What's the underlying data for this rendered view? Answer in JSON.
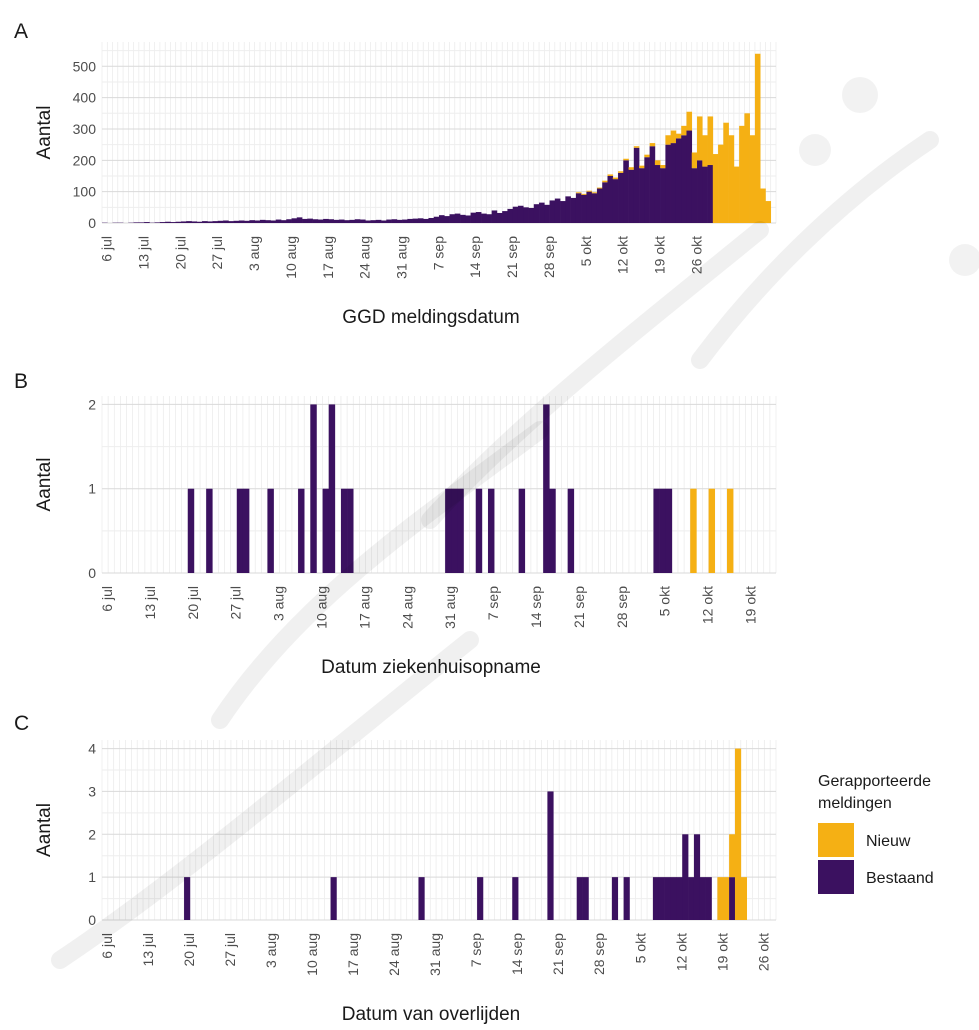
{
  "colors": {
    "nieuw": "#F5B014",
    "bestaand": "#3B1160",
    "grid": "#E6E6E6"
  },
  "legend": {
    "title_line1": "Gerapporteerde",
    "title_line2": "meldingen",
    "items": [
      {
        "key": "nieuw",
        "label": "Nieuw"
      },
      {
        "key": "bestaand",
        "label": "Bestaand"
      }
    ]
  },
  "chart_data": [
    {
      "panel": "A",
      "type": "bar",
      "stacked": true,
      "xlabel": "GGD meldingsdatum",
      "ylabel": "Aantal",
      "x_start": "6 jul",
      "ylim": [
        0,
        550
      ],
      "yticks": [
        0,
        100,
        200,
        300,
        400,
        500
      ],
      "xticks": [
        "6 jul",
        "13 jul",
        "20 jul",
        "27 jul",
        "3 aug",
        "10 aug",
        "17 aug",
        "24 aug",
        "31 aug",
        "7 sep",
        "14 sep",
        "21 sep",
        "28 sep",
        "5 okt",
        "12 okt",
        "19 okt",
        "26 okt"
      ],
      "series": [
        {
          "name": "Bestaand",
          "key": "bestaand",
          "values": [
            1,
            0,
            1,
            1,
            0,
            1,
            2,
            2,
            3,
            1,
            2,
            3,
            4,
            3,
            4,
            5,
            6,
            5,
            4,
            6,
            5,
            6,
            7,
            8,
            6,
            7,
            8,
            7,
            9,
            8,
            10,
            9,
            8,
            11,
            9,
            12,
            15,
            18,
            13,
            14,
            12,
            11,
            13,
            12,
            10,
            11,
            9,
            10,
            12,
            11,
            8,
            9,
            10,
            8,
            11,
            12,
            10,
            11,
            13,
            14,
            15,
            13,
            16,
            20,
            25,
            22,
            28,
            30,
            26,
            24,
            33,
            35,
            30,
            28,
            40,
            32,
            38,
            45,
            52,
            55,
            50,
            48,
            60,
            65,
            58,
            72,
            78,
            70,
            85,
            80,
            95,
            90,
            100,
            95,
            110,
            130,
            150,
            140,
            160,
            200,
            170,
            240,
            175,
            210,
            245,
            185,
            175,
            250,
            255,
            270,
            280,
            295,
            175,
            200,
            180,
            185,
            0,
            0,
            0,
            0,
            0,
            0,
            0,
            0,
            0,
            0,
            0,
            0
          ]
        },
        {
          "name": "Nieuw",
          "key": "nieuw",
          "values": [
            0,
            0,
            0,
            0,
            0,
            0,
            0,
            0,
            0,
            0,
            0,
            0,
            0,
            0,
            0,
            0,
            0,
            0,
            0,
            0,
            0,
            0,
            0,
            0,
            0,
            0,
            0,
            0,
            0,
            0,
            0,
            0,
            0,
            0,
            0,
            0,
            0,
            0,
            0,
            0,
            0,
            0,
            0,
            0,
            0,
            0,
            0,
            0,
            0,
            0,
            0,
            0,
            0,
            0,
            0,
            0,
            0,
            0,
            0,
            0,
            0,
            0,
            0,
            0,
            0,
            0,
            0,
            0,
            0,
            0,
            0,
            0,
            0,
            0,
            0,
            0,
            0,
            0,
            0,
            0,
            0,
            0,
            0,
            0,
            0,
            0,
            0,
            0,
            0,
            0,
            3,
            3,
            3,
            3,
            3,
            5,
            5,
            5,
            5,
            5,
            8,
            5,
            8,
            8,
            10,
            15,
            10,
            30,
            40,
            15,
            30,
            60,
            50,
            140,
            100,
            155,
            220,
            250,
            320,
            280,
            180,
            310,
            350,
            280,
            540,
            110,
            70,
            0
          ]
        }
      ]
    },
    {
      "panel": "B",
      "type": "bar",
      "stacked": true,
      "xlabel": "Datum ziekenhuisopname",
      "ylabel": "Aantal",
      "x_start": "6 jul",
      "ylim": [
        0,
        2
      ],
      "yticks": [
        0,
        1,
        2
      ],
      "xticks": [
        "6 jul",
        "13 jul",
        "20 jul",
        "27 jul",
        "3 aug",
        "10 aug",
        "17 aug",
        "24 aug",
        "31 aug",
        "7 sep",
        "14 sep",
        "21 sep",
        "28 sep",
        "5 okt",
        "12 okt",
        "19 okt",
        "26 okt"
      ],
      "series": [
        {
          "name": "Bestaand",
          "key": "bestaand",
          "values": [
            0,
            0,
            0,
            0,
            0,
            0,
            0,
            0,
            0,
            0,
            0,
            0,
            0,
            0,
            1,
            0,
            0,
            1,
            0,
            0,
            0,
            0,
            1,
            1,
            0,
            0,
            0,
            1,
            0,
            0,
            0,
            0,
            1,
            0,
            2,
            0,
            1,
            2,
            0,
            1,
            1,
            0,
            0,
            0,
            0,
            0,
            0,
            0,
            0,
            0,
            0,
            0,
            0,
            0,
            0,
            0,
            1,
            1,
            1,
            0,
            0,
            1,
            0,
            1,
            0,
            0,
            0,
            0,
            1,
            0,
            0,
            0,
            2,
            1,
            0,
            0,
            1,
            0,
            0,
            0,
            0,
            0,
            0,
            0,
            0,
            0,
            0,
            0,
            0,
            0,
            1,
            1,
            1,
            0,
            0,
            0,
            0,
            0,
            0,
            0,
            0,
            0,
            0,
            0,
            0,
            0,
            0,
            0,
            0,
            0
          ]
        },
        {
          "name": "Nieuw",
          "key": "nieuw",
          "values": [
            0,
            0,
            0,
            0,
            0,
            0,
            0,
            0,
            0,
            0,
            0,
            0,
            0,
            0,
            0,
            0,
            0,
            0,
            0,
            0,
            0,
            0,
            0,
            0,
            0,
            0,
            0,
            0,
            0,
            0,
            0,
            0,
            0,
            0,
            0,
            0,
            0,
            0,
            0,
            0,
            0,
            0,
            0,
            0,
            0,
            0,
            0,
            0,
            0,
            0,
            0,
            0,
            0,
            0,
            0,
            0,
            0,
            0,
            0,
            0,
            0,
            0,
            0,
            0,
            0,
            0,
            0,
            0,
            0,
            0,
            0,
            0,
            0,
            0,
            0,
            0,
            0,
            0,
            0,
            0,
            0,
            0,
            0,
            0,
            0,
            0,
            0,
            0,
            0,
            0,
            0,
            0,
            0,
            0,
            0,
            0,
            1,
            0,
            0,
            1,
            0,
            0,
            1,
            0,
            0,
            0,
            0,
            0,
            0,
            0
          ]
        }
      ]
    },
    {
      "panel": "C",
      "type": "bar",
      "stacked": true,
      "xlabel": "Datum van overlijden",
      "ylabel": "Aantal",
      "x_start": "6 jul",
      "ylim": [
        0,
        4
      ],
      "yticks": [
        0,
        1,
        2,
        3,
        4
      ],
      "xticks": [
        "6 jul",
        "13 jul",
        "20 jul",
        "27 jul",
        "3 aug",
        "10 aug",
        "17 aug",
        "24 aug",
        "31 aug",
        "7 sep",
        "14 sep",
        "21 sep",
        "28 sep",
        "5 okt",
        "12 okt",
        "19 okt",
        "26 okt"
      ],
      "series": [
        {
          "name": "Bestaand",
          "key": "bestaand",
          "values": [
            0,
            0,
            0,
            0,
            0,
            0,
            0,
            0,
            0,
            0,
            0,
            0,
            0,
            0,
            1,
            0,
            0,
            0,
            0,
            0,
            0,
            0,
            0,
            0,
            0,
            0,
            0,
            0,
            0,
            0,
            0,
            0,
            0,
            0,
            0,
            0,
            0,
            0,
            0,
            1,
            0,
            0,
            0,
            0,
            0,
            0,
            0,
            0,
            0,
            0,
            0,
            0,
            0,
            0,
            1,
            0,
            0,
            0,
            0,
            0,
            0,
            0,
            0,
            0,
            1,
            0,
            0,
            0,
            0,
            0,
            1,
            0,
            0,
            0,
            0,
            0,
            3,
            0,
            0,
            0,
            0,
            1,
            1,
            0,
            0,
            0,
            0,
            1,
            0,
            1,
            0,
            0,
            0,
            0,
            1,
            1,
            1,
            1,
            1,
            2,
            1,
            2,
            1,
            1,
            0,
            0,
            0,
            1,
            0,
            0,
            0,
            0,
            0,
            0,
            0
          ]
        },
        {
          "name": "Nieuw",
          "key": "nieuw",
          "values": [
            0,
            0,
            0,
            0,
            0,
            0,
            0,
            0,
            0,
            0,
            0,
            0,
            0,
            0,
            0,
            0,
            0,
            0,
            0,
            0,
            0,
            0,
            0,
            0,
            0,
            0,
            0,
            0,
            0,
            0,
            0,
            0,
            0,
            0,
            0,
            0,
            0,
            0,
            0,
            0,
            0,
            0,
            0,
            0,
            0,
            0,
            0,
            0,
            0,
            0,
            0,
            0,
            0,
            0,
            0,
            0,
            0,
            0,
            0,
            0,
            0,
            0,
            0,
            0,
            0,
            0,
            0,
            0,
            0,
            0,
            0,
            0,
            0,
            0,
            0,
            0,
            0,
            0,
            0,
            0,
            0,
            0,
            0,
            0,
            0,
            0,
            0,
            0,
            0,
            0,
            0,
            0,
            0,
            0,
            0,
            0,
            0,
            0,
            0,
            0,
            0,
            0,
            0,
            0,
            0,
            1,
            1,
            1,
            4,
            1,
            0,
            0,
            0,
            0,
            0
          ]
        }
      ]
    }
  ]
}
